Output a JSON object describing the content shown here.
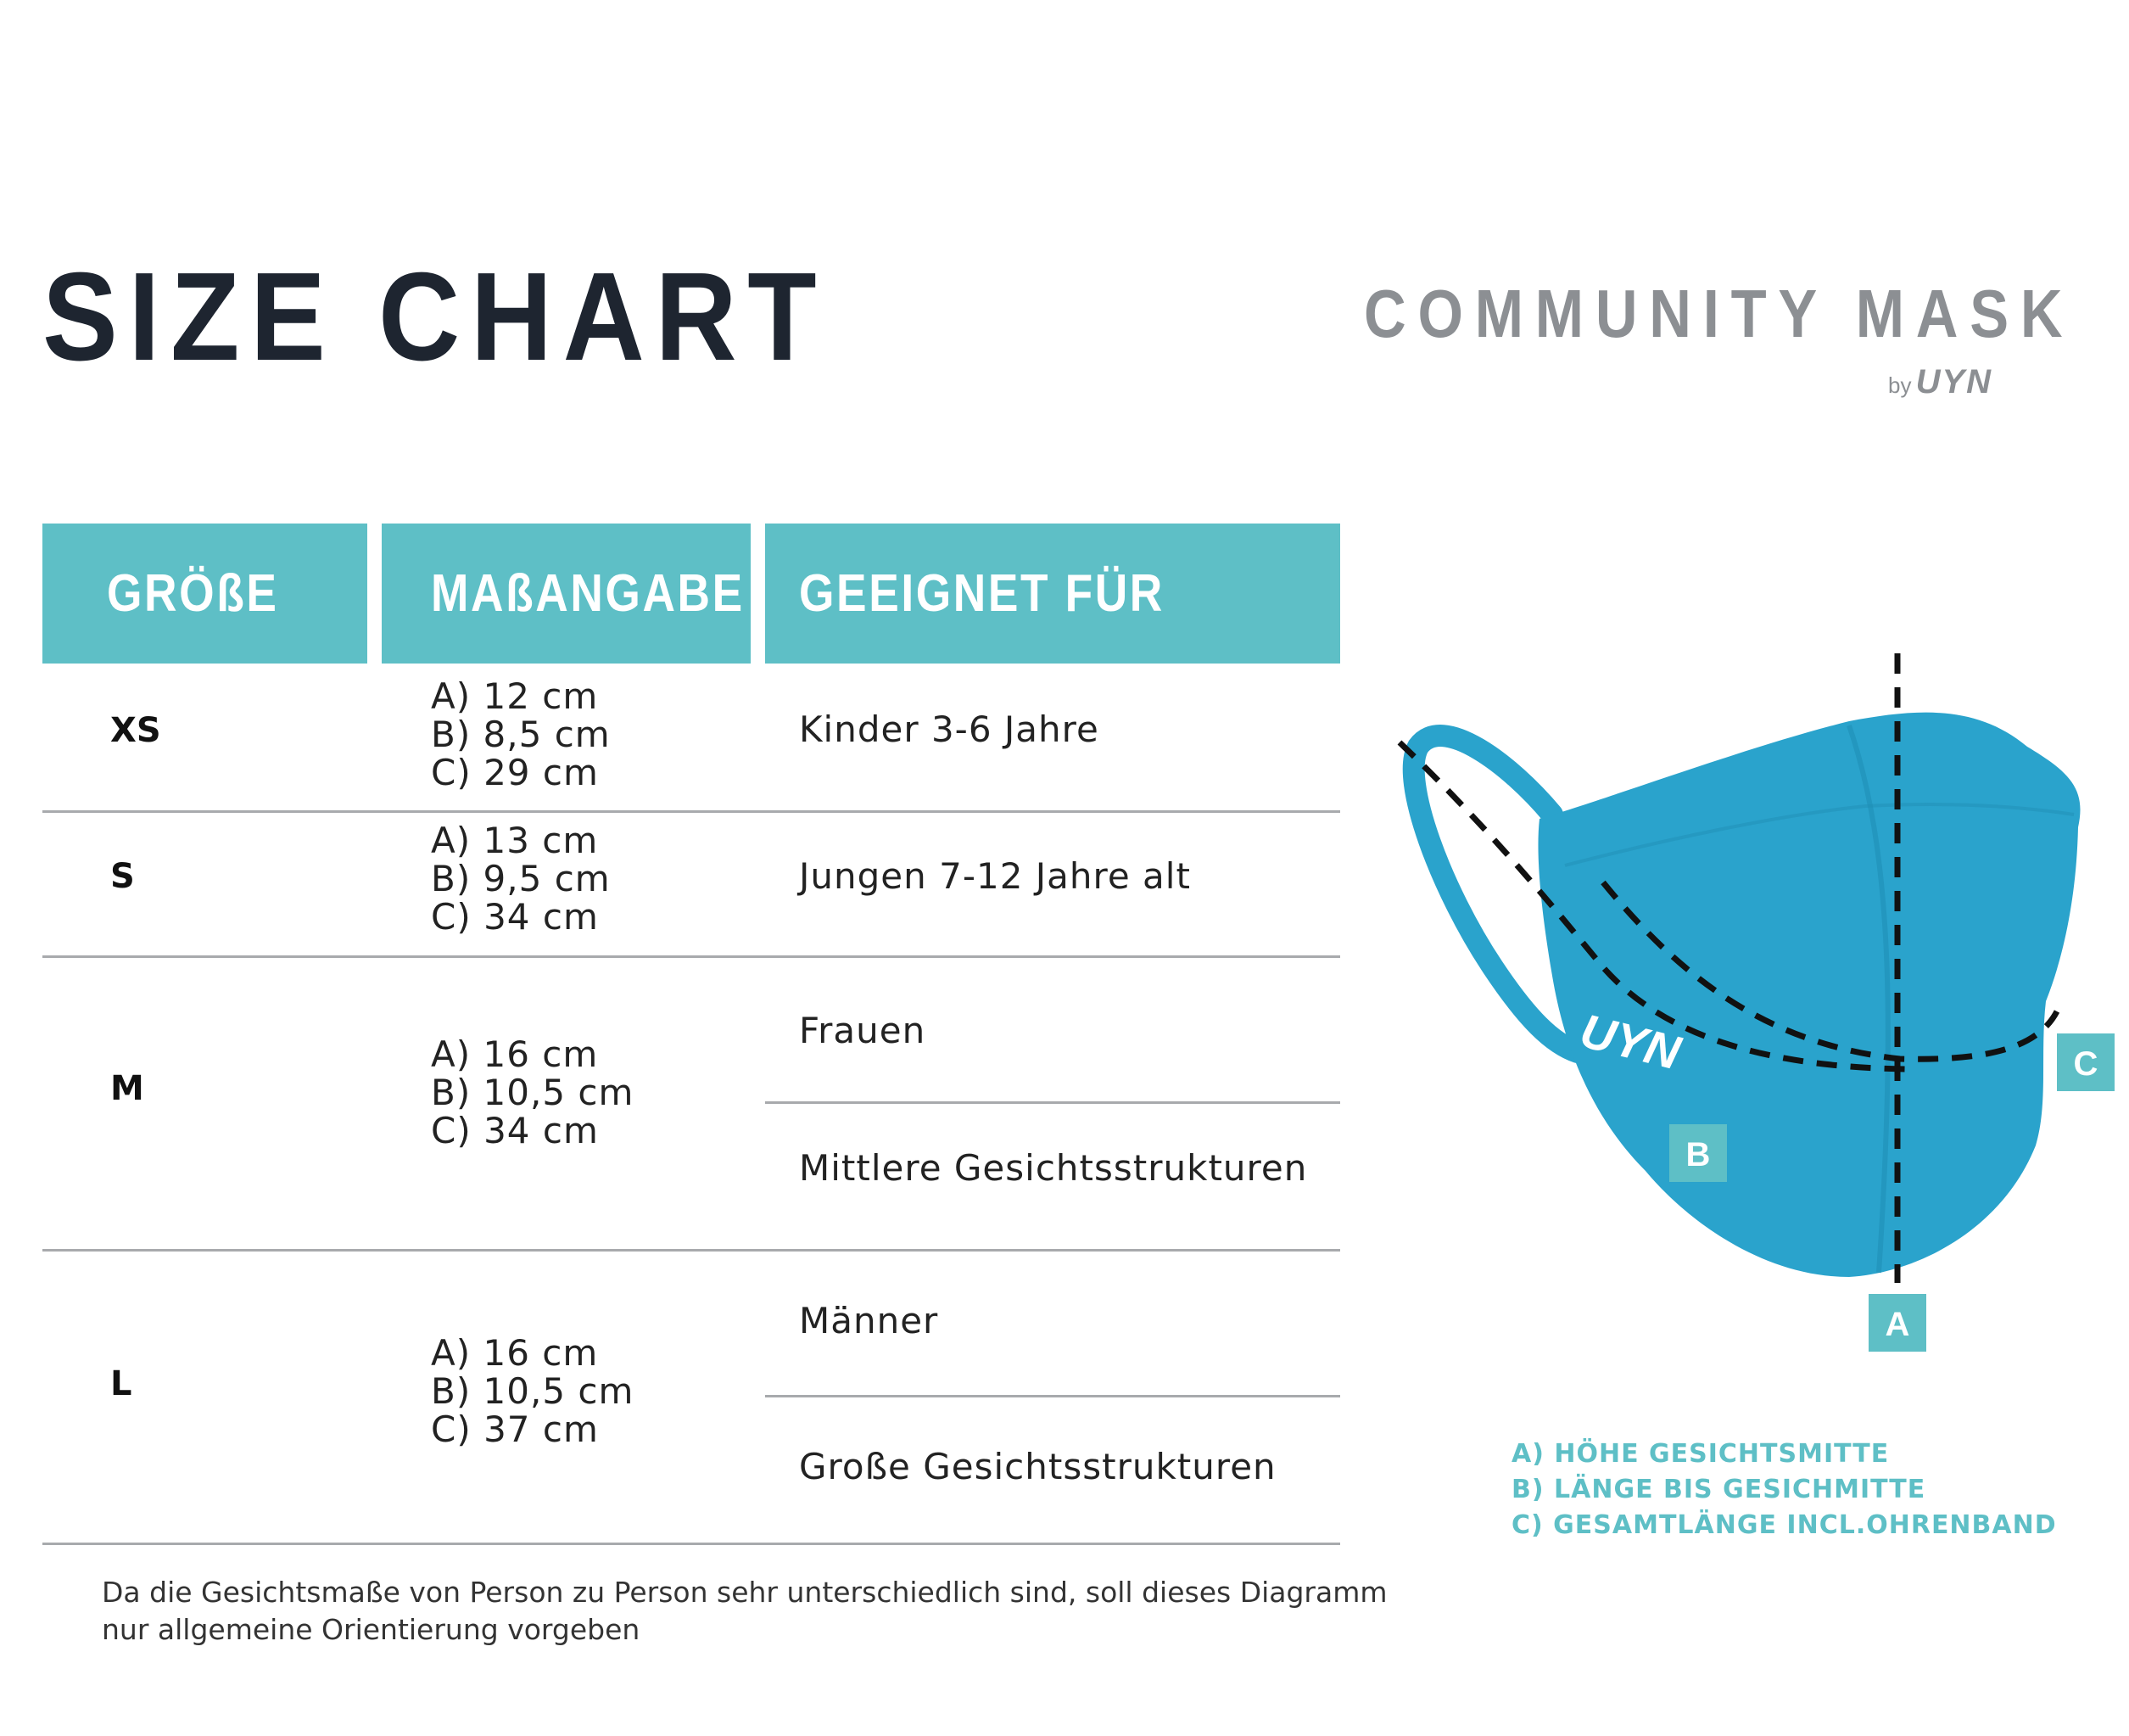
{
  "header": {
    "title": "SIZE CHART",
    "brand": "COMMUNITY MASK",
    "brand_by": "by",
    "brand_logo": "UYN"
  },
  "table": {
    "columns": [
      "GRÖßE",
      "MAßANGABE",
      "GEEIGNET FÜR"
    ],
    "rows": [
      {
        "size": "XS",
        "measures": [
          "A) 12 cm",
          "B) 8,5 cm",
          "C) 29 cm"
        ],
        "suitable": [
          "Kinder 3-6 Jahre"
        ]
      },
      {
        "size": "S",
        "measures": [
          "A) 13 cm",
          "B) 9,5 cm",
          "C) 34 cm"
        ],
        "suitable": [
          "Jungen 7-12 Jahre alt"
        ]
      },
      {
        "size": "M",
        "measures": [
          "A) 16 cm",
          "B) 10,5 cm",
          "C) 34 cm"
        ],
        "suitable": [
          "Frauen",
          "Mittlere Gesichtsstrukturen"
        ]
      },
      {
        "size": "L",
        "measures": [
          "A) 16 cm",
          "B) 10,5 cm",
          "C) 37 cm"
        ],
        "suitable": [
          "Männer",
          "Große Gesichtsstrukturen"
        ]
      }
    ],
    "footnote": [
      "Da die Gesichtsmaße von Person zu Person sehr unterschiedlich sind, soll dieses Diagramm",
      "nur allgemeine Orientierung vorgeben"
    ]
  },
  "diagram": {
    "markers": [
      "A",
      "B",
      "C"
    ],
    "mask_logo": "UYN",
    "legend": [
      "A) HÖHE GESICHTSMITTE",
      "B) LÄNGE BIS GESICHMITTE",
      "C) GESAMTLÄNGE INCL.OHRENBAND"
    ],
    "accent_color": "#5ebfc6",
    "mask_color": "#2aa3cc"
  }
}
